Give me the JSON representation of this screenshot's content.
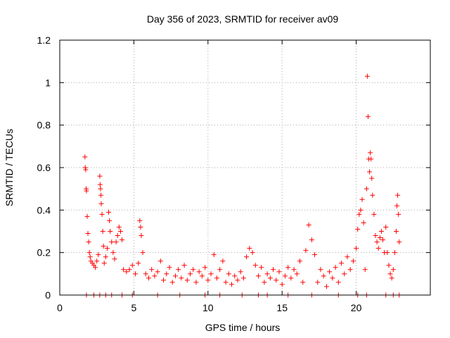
{
  "chart_data": {
    "type": "scatter",
    "title": "Day 356 of 2023, SRMTID for receiver av09",
    "xlabel": "GPS time / hours",
    "ylabel": "SRMTID / TECUs",
    "xlim": [
      0,
      25
    ],
    "ylim": [
      0,
      1.2
    ],
    "xticks": [
      0,
      5,
      10,
      15,
      20
    ],
    "yticks": [
      0,
      0.2,
      0.4,
      0.6,
      0.8,
      1,
      1.2
    ],
    "ytick_labels": [
      "0",
      "0.2",
      "0.4",
      "0.6",
      "0.8",
      "1",
      "1.2"
    ],
    "grid": true,
    "marker": "plus",
    "series": [
      {
        "name": "SRMTID",
        "color": "#ff0000",
        "points": [
          [
            1.7,
            0.65
          ],
          [
            1.72,
            0.6
          ],
          [
            1.75,
            0.59
          ],
          [
            1.78,
            0.5
          ],
          [
            1.8,
            0.49
          ],
          [
            1.85,
            0.37
          ],
          [
            1.9,
            0.29
          ],
          [
            1.95,
            0.25
          ],
          [
            2.0,
            0.2
          ],
          [
            2.05,
            0.18
          ],
          [
            2.1,
            0.16
          ],
          [
            2.2,
            0.15
          ],
          [
            2.3,
            0.14
          ],
          [
            2.4,
            0.13
          ],
          [
            2.5,
            0.16
          ],
          [
            2.6,
            0.19
          ],
          [
            2.7,
            0.56
          ],
          [
            2.72,
            0.52
          ],
          [
            2.75,
            0.5
          ],
          [
            2.78,
            0.47
          ],
          [
            2.8,
            0.43
          ],
          [
            2.85,
            0.38
          ],
          [
            2.9,
            0.3
          ],
          [
            2.95,
            0.23
          ],
          [
            3.0,
            0.15
          ],
          [
            3.1,
            0.18
          ],
          [
            3.2,
            0.22
          ],
          [
            3.3,
            0.39
          ],
          [
            3.35,
            0.35
          ],
          [
            3.4,
            0.3
          ],
          [
            3.5,
            0.25
          ],
          [
            3.6,
            0.2
          ],
          [
            3.7,
            0.17
          ],
          [
            3.8,
            0.25
          ],
          [
            3.9,
            0.28
          ],
          [
            4.0,
            0.32
          ],
          [
            4.1,
            0.3
          ],
          [
            4.2,
            0.26
          ],
          [
            4.3,
            0.12
          ],
          [
            4.5,
            0.11
          ],
          [
            4.7,
            0.12
          ],
          [
            4.9,
            0.14
          ],
          [
            5.1,
            0.1
          ],
          [
            5.3,
            0.15
          ],
          [
            5.4,
            0.35
          ],
          [
            5.45,
            0.32
          ],
          [
            5.5,
            0.28
          ],
          [
            5.6,
            0.2
          ],
          [
            5.8,
            0.1
          ],
          [
            6.0,
            0.08
          ],
          [
            6.2,
            0.12
          ],
          [
            6.4,
            0.09
          ],
          [
            6.6,
            0.11
          ],
          [
            6.8,
            0.16
          ],
          [
            7.0,
            0.07
          ],
          [
            7.2,
            0.1
          ],
          [
            7.4,
            0.13
          ],
          [
            7.6,
            0.06
          ],
          [
            7.8,
            0.09
          ],
          [
            8.0,
            0.12
          ],
          [
            8.2,
            0.08
          ],
          [
            8.4,
            0.14
          ],
          [
            8.6,
            0.07
          ],
          [
            8.8,
            0.1
          ],
          [
            9.0,
            0.12
          ],
          [
            9.2,
            0.06
          ],
          [
            9.4,
            0.11
          ],
          [
            9.6,
            0.09
          ],
          [
            9.8,
            0.13
          ],
          [
            10.0,
            0.07
          ],
          [
            10.2,
            0.1
          ],
          [
            10.4,
            0.19
          ],
          [
            10.6,
            0.08
          ],
          [
            10.8,
            0.12
          ],
          [
            11.0,
            0.16
          ],
          [
            11.2,
            0.06
          ],
          [
            11.4,
            0.1
          ],
          [
            11.6,
            0.05
          ],
          [
            11.8,
            0.09
          ],
          [
            12.0,
            0.07
          ],
          [
            12.2,
            0.11
          ],
          [
            12.4,
            0.08
          ],
          [
            12.6,
            0.18
          ],
          [
            12.8,
            0.22
          ],
          [
            13.0,
            0.2
          ],
          [
            13.2,
            0.14
          ],
          [
            13.4,
            0.09
          ],
          [
            13.6,
            0.13
          ],
          [
            13.8,
            0.06
          ],
          [
            14.0,
            0.1
          ],
          [
            14.2,
            0.08
          ],
          [
            14.4,
            0.12
          ],
          [
            14.6,
            0.07
          ],
          [
            14.8,
            0.11
          ],
          [
            15.0,
            0.05
          ],
          [
            15.2,
            0.09
          ],
          [
            15.4,
            0.13
          ],
          [
            15.6,
            0.08
          ],
          [
            15.8,
            0.12
          ],
          [
            16.0,
            0.1
          ],
          [
            16.2,
            0.16
          ],
          [
            16.4,
            0.06
          ],
          [
            16.6,
            0.21
          ],
          [
            16.8,
            0.33
          ],
          [
            17.0,
            0.26
          ],
          [
            17.2,
            0.19
          ],
          [
            17.4,
            0.06
          ],
          [
            17.6,
            0.12
          ],
          [
            17.8,
            0.09
          ],
          [
            18.0,
            0.04
          ],
          [
            18.2,
            0.11
          ],
          [
            18.4,
            0.08
          ],
          [
            18.6,
            0.13
          ],
          [
            18.8,
            0.06
          ],
          [
            19.0,
            0.15
          ],
          [
            19.2,
            0.1
          ],
          [
            19.4,
            0.18
          ],
          [
            19.6,
            0.12
          ],
          [
            19.8,
            0.16
          ],
          [
            20.0,
            0.22
          ],
          [
            20.1,
            0.31
          ],
          [
            20.2,
            0.38
          ],
          [
            20.3,
            0.4
          ],
          [
            20.4,
            0.45
          ],
          [
            20.5,
            0.34
          ],
          [
            20.6,
            0.12
          ],
          [
            20.7,
            0.5
          ],
          [
            20.75,
            1.03
          ],
          [
            20.8,
            0.84
          ],
          [
            20.85,
            0.64
          ],
          [
            20.9,
            0.58
          ],
          [
            20.95,
            0.67
          ],
          [
            21.0,
            0.64
          ],
          [
            21.05,
            0.55
          ],
          [
            21.1,
            0.47
          ],
          [
            21.2,
            0.38
          ],
          [
            21.3,
            0.28
          ],
          [
            21.4,
            0.25
          ],
          [
            21.5,
            0.22
          ],
          [
            21.6,
            0.27
          ],
          [
            21.7,
            0.3
          ],
          [
            21.8,
            0.26
          ],
          [
            21.9,
            0.2
          ],
          [
            22.0,
            0.32
          ],
          [
            22.1,
            0.2
          ],
          [
            22.2,
            0.14
          ],
          [
            22.3,
            0.1
          ],
          [
            22.4,
            0.08
          ],
          [
            22.5,
            0.12
          ],
          [
            22.6,
            0.2
          ],
          [
            22.7,
            0.3
          ],
          [
            22.75,
            0.42
          ],
          [
            22.8,
            0.47
          ],
          [
            22.85,
            0.38
          ],
          [
            22.9,
            0.25
          ],
          [
            1.8,
            0.0
          ],
          [
            2.3,
            0.0
          ],
          [
            2.7,
            0.0
          ],
          [
            3.1,
            0.0
          ],
          [
            3.5,
            0.0
          ],
          [
            4.2,
            0.0
          ],
          [
            4.9,
            0.0
          ],
          [
            6.6,
            0.0
          ],
          [
            8.1,
            0.0
          ],
          [
            9.8,
            0.0
          ],
          [
            10.8,
            0.0
          ],
          [
            12.3,
            0.0
          ],
          [
            13.4,
            0.0
          ],
          [
            14.0,
            0.0
          ],
          [
            15.4,
            0.0
          ],
          [
            17.0,
            0.0
          ],
          [
            18.8,
            0.0
          ],
          [
            20.1,
            0.0
          ],
          [
            20.7,
            0.0
          ],
          [
            22.0,
            0.0
          ],
          [
            22.5,
            0.0
          ],
          [
            22.9,
            0.0
          ]
        ]
      }
    ]
  }
}
